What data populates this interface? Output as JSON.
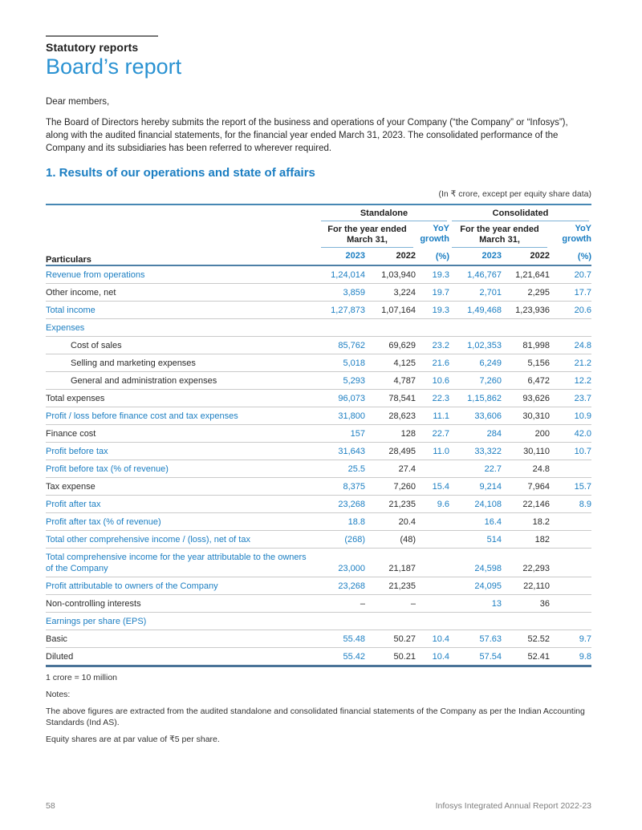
{
  "page": {
    "eyebrow": "Statutory reports",
    "title": "Board’s report",
    "salutation": "Dear members,",
    "intro": "The Board of Directors hereby submits the report of the business and operations of your Company (“the Company” or “Infosys”), along with the audited financial statements, for the financial year ended March 31, 2023. The consolidated performance of the Company and its subsidiaries has been referred to wherever required.",
    "section_heading": "1. Results of our operations and state of affairs",
    "unit_note": "(In ₹ crore, except per equity share data)"
  },
  "table": {
    "particulars_header": "Particulars",
    "standalone_header": "Standalone",
    "consolidated_header": "Consolidated",
    "period_header": "For the year ended March 31,",
    "yoy_header": "YoY growth",
    "yoy_unit": "(%)",
    "year_2023": "2023",
    "year_2022": "2022",
    "rows": [
      {
        "label": "Revenue from operations",
        "blue": true,
        "indent": false,
        "s2023": "1,24,014",
        "s2022": "1,03,940",
        "syoy": "19.3",
        "c2023": "1,46,767",
        "c2022": "1,21,641",
        "cyoy": "20.7"
      },
      {
        "label": "Other income, net",
        "blue": false,
        "indent": false,
        "s2023": "3,859",
        "s2022": "3,224",
        "syoy": "19.7",
        "c2023": "2,701",
        "c2022": "2,295",
        "cyoy": "17.7"
      },
      {
        "label": "Total income",
        "blue": true,
        "indent": false,
        "s2023": "1,27,873",
        "s2022": "1,07,164",
        "syoy": "19.3",
        "c2023": "1,49,468",
        "c2022": "1,23,936",
        "cyoy": "20.6"
      },
      {
        "label": "Expenses",
        "blue": true,
        "indent": false,
        "s2023": "",
        "s2022": "",
        "syoy": "",
        "c2023": "",
        "c2022": "",
        "cyoy": ""
      },
      {
        "label": "Cost of sales",
        "blue": false,
        "indent": true,
        "s2023": "85,762",
        "s2022": "69,629",
        "syoy": "23.2",
        "c2023": "1,02,353",
        "c2022": "81,998",
        "cyoy": "24.8"
      },
      {
        "label": "Selling and marketing expenses",
        "blue": false,
        "indent": true,
        "s2023": "5,018",
        "s2022": "4,125",
        "syoy": "21.6",
        "c2023": "6,249",
        "c2022": "5,156",
        "cyoy": "21.2"
      },
      {
        "label": "General and administration expenses",
        "blue": false,
        "indent": true,
        "s2023": "5,293",
        "s2022": "4,787",
        "syoy": "10.6",
        "c2023": "7,260",
        "c2022": "6,472",
        "cyoy": "12.2"
      },
      {
        "label": "Total expenses",
        "blue": false,
        "indent": false,
        "s2023": "96,073",
        "s2022": "78,541",
        "syoy": "22.3",
        "c2023": "1,15,862",
        "c2022": "93,626",
        "cyoy": "23.7"
      },
      {
        "label": "Profit / loss before finance cost and tax expenses",
        "blue": true,
        "indent": false,
        "s2023": "31,800",
        "s2022": "28,623",
        "syoy": "11.1",
        "c2023": "33,606",
        "c2022": "30,310",
        "cyoy": "10.9"
      },
      {
        "label": "Finance cost",
        "blue": false,
        "indent": false,
        "s2023": "157",
        "s2022": "128",
        "syoy": "22.7",
        "c2023": "284",
        "c2022": "200",
        "cyoy": "42.0"
      },
      {
        "label": "Profit before tax",
        "blue": true,
        "indent": false,
        "s2023": "31,643",
        "s2022": "28,495",
        "syoy": "11.0",
        "c2023": "33,322",
        "c2022": "30,110",
        "cyoy": "10.7"
      },
      {
        "label": "Profit before tax (% of revenue)",
        "blue": true,
        "indent": false,
        "s2023": "25.5",
        "s2022": "27.4",
        "syoy": "",
        "c2023": "22.7",
        "c2022": "24.8",
        "cyoy": ""
      },
      {
        "label": "Tax expense",
        "blue": false,
        "indent": false,
        "s2023": "8,375",
        "s2022": "7,260",
        "syoy": "15.4",
        "c2023": "9,214",
        "c2022": "7,964",
        "cyoy": "15.7"
      },
      {
        "label": "Profit after tax",
        "blue": true,
        "indent": false,
        "s2023": "23,268",
        "s2022": "21,235",
        "syoy": "9.6",
        "c2023": "24,108",
        "c2022": "22,146",
        "cyoy": "8.9"
      },
      {
        "label": "Profit after tax (% of revenue)",
        "blue": true,
        "indent": false,
        "s2023": "18.8",
        "s2022": "20.4",
        "syoy": "",
        "c2023": "16.4",
        "c2022": "18.2",
        "cyoy": ""
      },
      {
        "label": "Total other comprehensive income / (loss), net of tax",
        "blue": true,
        "indent": false,
        "s2023": "(268)",
        "s2022": "(48)",
        "syoy": "",
        "c2023": "514",
        "c2022": "182",
        "cyoy": ""
      },
      {
        "label": "Total comprehensive income for the year attributable to the owners of the Company",
        "blue": true,
        "indent": false,
        "s2023": "23,000",
        "s2022": "21,187",
        "syoy": "",
        "c2023": "24,598",
        "c2022": "22,293",
        "cyoy": ""
      },
      {
        "label": "Profit attributable to owners of the Company",
        "blue": true,
        "indent": false,
        "s2023": "23,268",
        "s2022": "21,235",
        "syoy": "",
        "c2023": "24,095",
        "c2022": "22,110",
        "cyoy": ""
      },
      {
        "label": "Non-controlling interests",
        "blue": false,
        "indent": false,
        "s2023": "–",
        "s2022": "–",
        "syoy": "",
        "c2023": "13",
        "c2022": "36",
        "cyoy": ""
      },
      {
        "label": "Earnings per share (EPS)",
        "blue": true,
        "indent": false,
        "s2023": "",
        "s2022": "",
        "syoy": "",
        "c2023": "",
        "c2022": "",
        "cyoy": ""
      },
      {
        "label": "Basic",
        "blue": false,
        "indent": false,
        "s2023": "55.48",
        "s2022": "50.27",
        "syoy": "10.4",
        "c2023": "57.63",
        "c2022": "52.52",
        "cyoy": "9.7"
      },
      {
        "label": "Diluted",
        "blue": false,
        "indent": false,
        "s2023": "55.42",
        "s2022": "50.21",
        "syoy": "10.4",
        "c2023": "57.54",
        "c2022": "52.41",
        "cyoy": "9.8"
      }
    ]
  },
  "footnotes": {
    "crore": "1 crore = 10 million",
    "notes_label": "Notes:",
    "notes_text": "The above figures are extracted from the audited standalone and consolidated financial statements of the Company as per the Indian Accounting Standards (Ind AS).",
    "equity_note": "Equity shares are at par value of ₹5 per share."
  },
  "footer": {
    "page_number": "58",
    "report_name": "Infosys Integrated Annual Report 2022-23"
  },
  "colors": {
    "accent": "#1b7ec2",
    "title_blue": "#2a92d2",
    "line_blue": "#7fb2d6",
    "header_rule": "#4d7fa6",
    "separator": "#cacaca",
    "bottom_rule": "#4a7398"
  }
}
